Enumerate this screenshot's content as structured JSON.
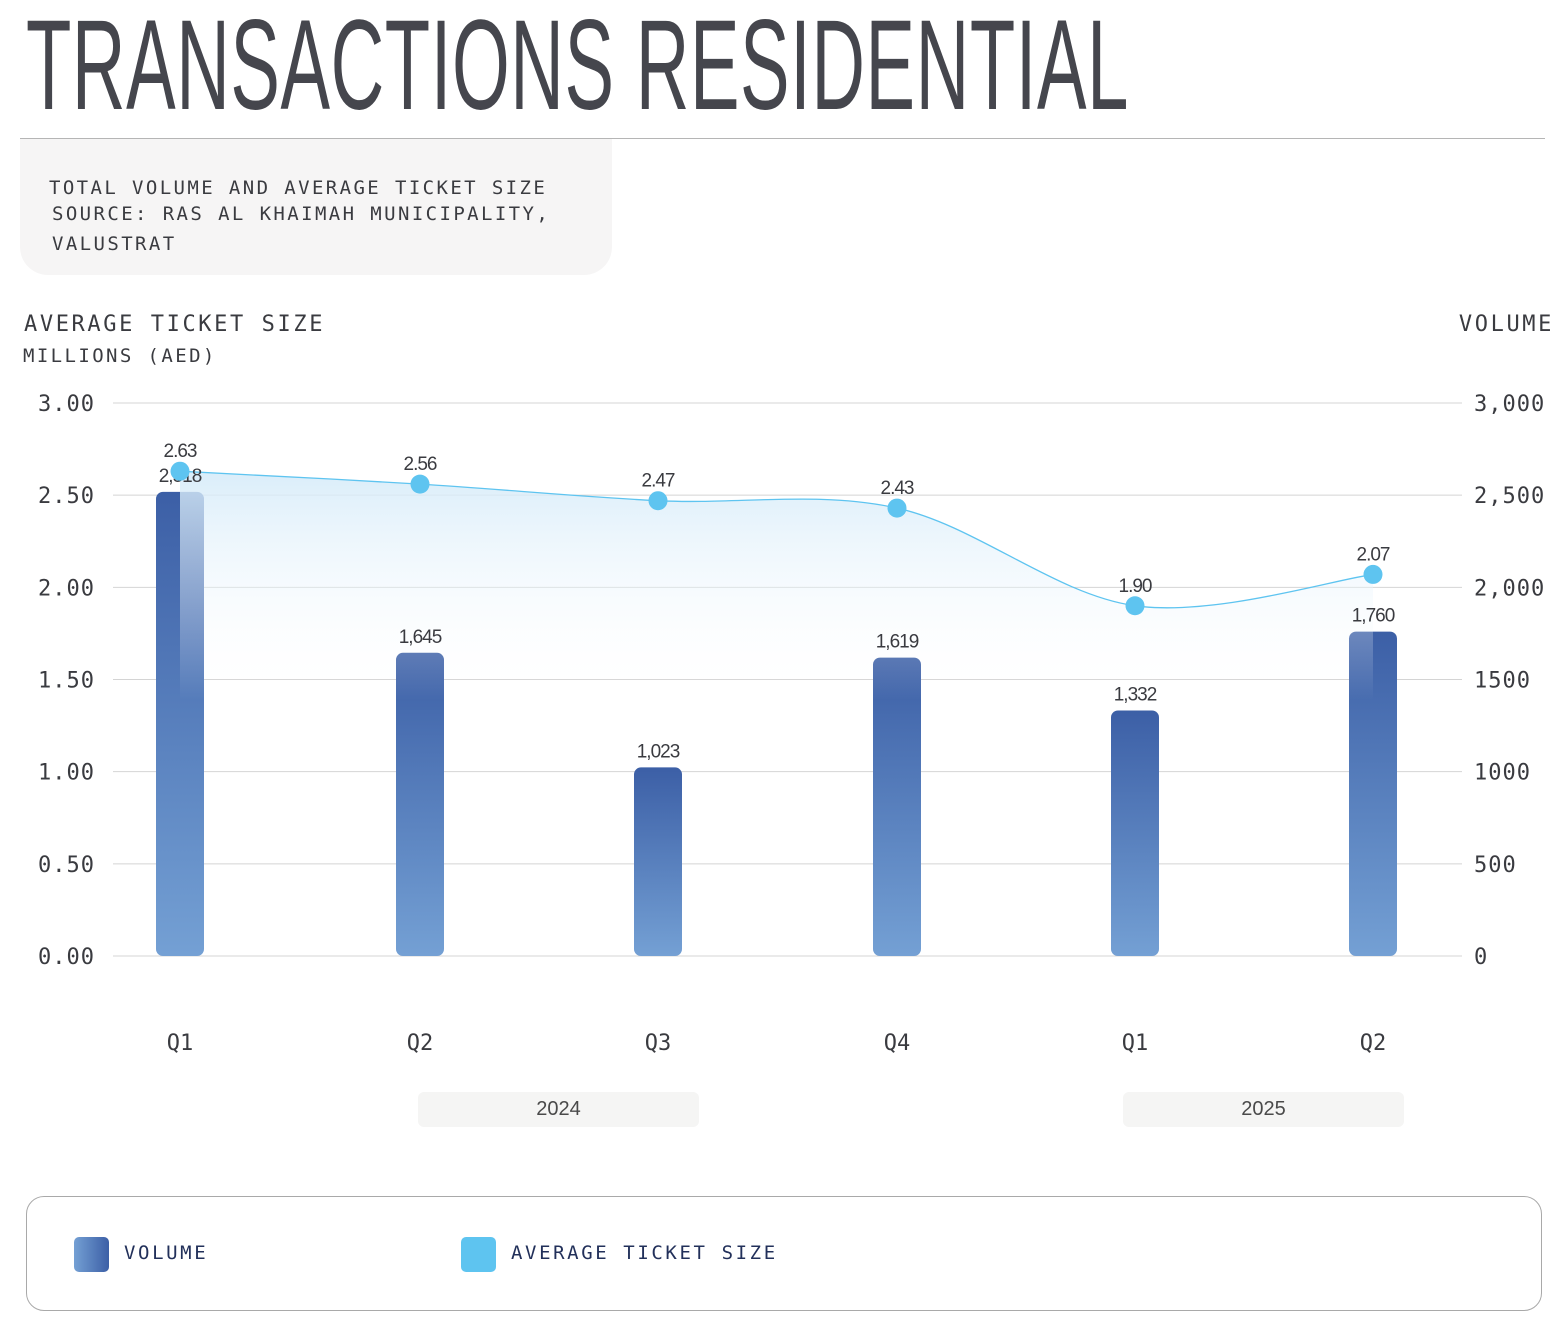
{
  "title": "TRANSACTIONS RESIDENTIAL",
  "info": {
    "line1": "TOTAL VOLUME AND AVERAGE TICKET SIZE",
    "line2": "SOURCE: RAS AL KHAIMAH MUNICIPALITY,",
    "line3": "VALUSTRAT"
  },
  "colors": {
    "bar_top": "#3c5fa6",
    "bar_bottom": "#74a0d4",
    "line": "#5ec4f0",
    "marker": "#5ec4f0",
    "text": "#3a3b40"
  },
  "chart_data": {
    "type": "bar+line",
    "left_axis": {
      "title": "AVERAGE TICKET SIZE",
      "subtitle": "MILLIONS (AED)",
      "range": [
        0,
        3
      ],
      "ticks": [
        "0.00",
        "0.50",
        "1.00",
        "1.50",
        "2.00",
        "2.50",
        "3.00"
      ]
    },
    "right_axis": {
      "title": "VOLUME",
      "range": [
        0,
        3000
      ],
      "ticks": [
        "0",
        "500",
        "1000",
        "1500",
        "2,000",
        "2,500",
        "3,000"
      ]
    },
    "categories": [
      "Q1",
      "Q2",
      "Q3",
      "Q4",
      "Q1",
      "Q2"
    ],
    "years": [
      {
        "label": "2024"
      },
      {
        "label": "2025"
      }
    ],
    "grid": true,
    "series": [
      {
        "name": "VOLUME",
        "type": "bar",
        "axis": "right",
        "values": [
          2518,
          1645,
          1023,
          1619,
          1332,
          1760
        ],
        "labels": [
          "2,518",
          "1,645",
          "1,023",
          "1,619",
          "1,332",
          "1,760"
        ]
      },
      {
        "name": "AVERAGE TICKET SIZE",
        "type": "line",
        "axis": "left",
        "values": [
          2.63,
          2.56,
          2.47,
          2.43,
          1.9,
          2.07
        ],
        "labels": [
          "2.63",
          "2.56",
          "2.47",
          "2.43",
          "1.90",
          "2.07"
        ]
      }
    ],
    "legend": "bottom"
  }
}
